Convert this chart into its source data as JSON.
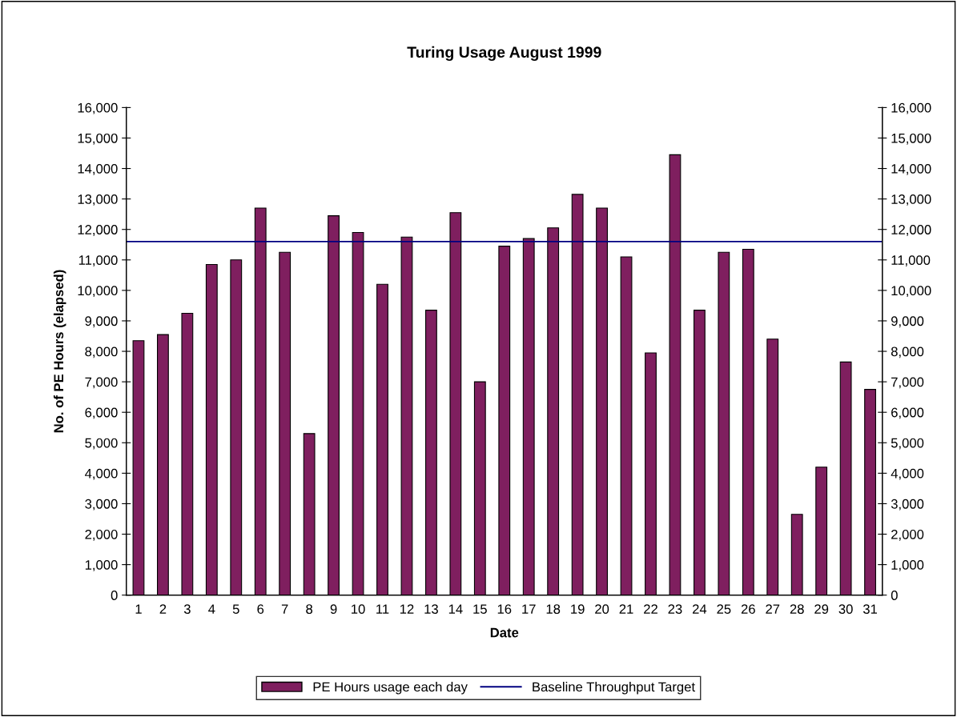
{
  "chart_data": {
    "type": "bar",
    "title": "Turing Usage August 1999",
    "xlabel": "Date",
    "ylabel": "No. of PE Hours (elapsed)",
    "categories": [
      "1",
      "2",
      "3",
      "4",
      "5",
      "6",
      "7",
      "8",
      "9",
      "10",
      "11",
      "12",
      "13",
      "14",
      "15",
      "16",
      "17",
      "18",
      "19",
      "20",
      "21",
      "22",
      "23",
      "24",
      "25",
      "26",
      "27",
      "28",
      "29",
      "30",
      "31"
    ],
    "series": [
      {
        "name": "PE Hours usage each day",
        "color": "#7f1f5f",
        "values": [
          8350,
          8550,
          9250,
          10850,
          11000,
          12700,
          11250,
          5300,
          12450,
          11900,
          10200,
          11750,
          9350,
          12550,
          7000,
          11450,
          11700,
          12050,
          13150,
          12700,
          11100,
          7950,
          14450,
          9350,
          11250,
          11350,
          8400,
          2650,
          4200,
          7650,
          6750
        ]
      }
    ],
    "ref_lines": [
      {
        "axis": "y",
        "value": 11600,
        "label": "Baseline Throughput Target",
        "color": "#000080"
      }
    ],
    "ylim": [
      0,
      16000
    ],
    "yticks": [
      {
        "value": 0,
        "label": "0"
      },
      {
        "value": 1000,
        "label": "1,000"
      },
      {
        "value": 2000,
        "label": "2,000"
      },
      {
        "value": 3000,
        "label": "3,000"
      },
      {
        "value": 4000,
        "label": "4,000"
      },
      {
        "value": 5000,
        "label": "5,000"
      },
      {
        "value": 6000,
        "label": "6,000"
      },
      {
        "value": 7000,
        "label": "7,000"
      },
      {
        "value": 8000,
        "label": "8,000"
      },
      {
        "value": 9000,
        "label": "9,000"
      },
      {
        "value": 10000,
        "label": "10,000"
      },
      {
        "value": 11000,
        "label": "11,000"
      },
      {
        "value": 12000,
        "label": "12,000"
      },
      {
        "value": 13000,
        "label": "13,000"
      },
      {
        "value": 14000,
        "label": "14,000"
      },
      {
        "value": 15000,
        "label": "15,000"
      },
      {
        "value": 16000,
        "label": "16,000"
      }
    ],
    "y2lim": [
      0,
      16000
    ],
    "y2ticks": [
      {
        "value": 0,
        "label": "0"
      },
      {
        "value": 1000,
        "label": "1,000"
      },
      {
        "value": 2000,
        "label": "2,000"
      },
      {
        "value": 3000,
        "label": "3,000"
      },
      {
        "value": 4000,
        "label": "4,000"
      },
      {
        "value": 5000,
        "label": "5,000"
      },
      {
        "value": 6000,
        "label": "6,000"
      },
      {
        "value": 7000,
        "label": "7,000"
      },
      {
        "value": 8000,
        "label": "8,000"
      },
      {
        "value": 9000,
        "label": "9,000"
      },
      {
        "value": 10000,
        "label": "10,000"
      },
      {
        "value": 11000,
        "label": "11,000"
      },
      {
        "value": 12000,
        "label": "12,000"
      },
      {
        "value": 13000,
        "label": "13,000"
      },
      {
        "value": 14000,
        "label": "14,000"
      },
      {
        "value": 15000,
        "label": "15,000"
      },
      {
        "value": 16000,
        "label": "16,000"
      }
    ],
    "grid": false,
    "legend": "bottom"
  }
}
